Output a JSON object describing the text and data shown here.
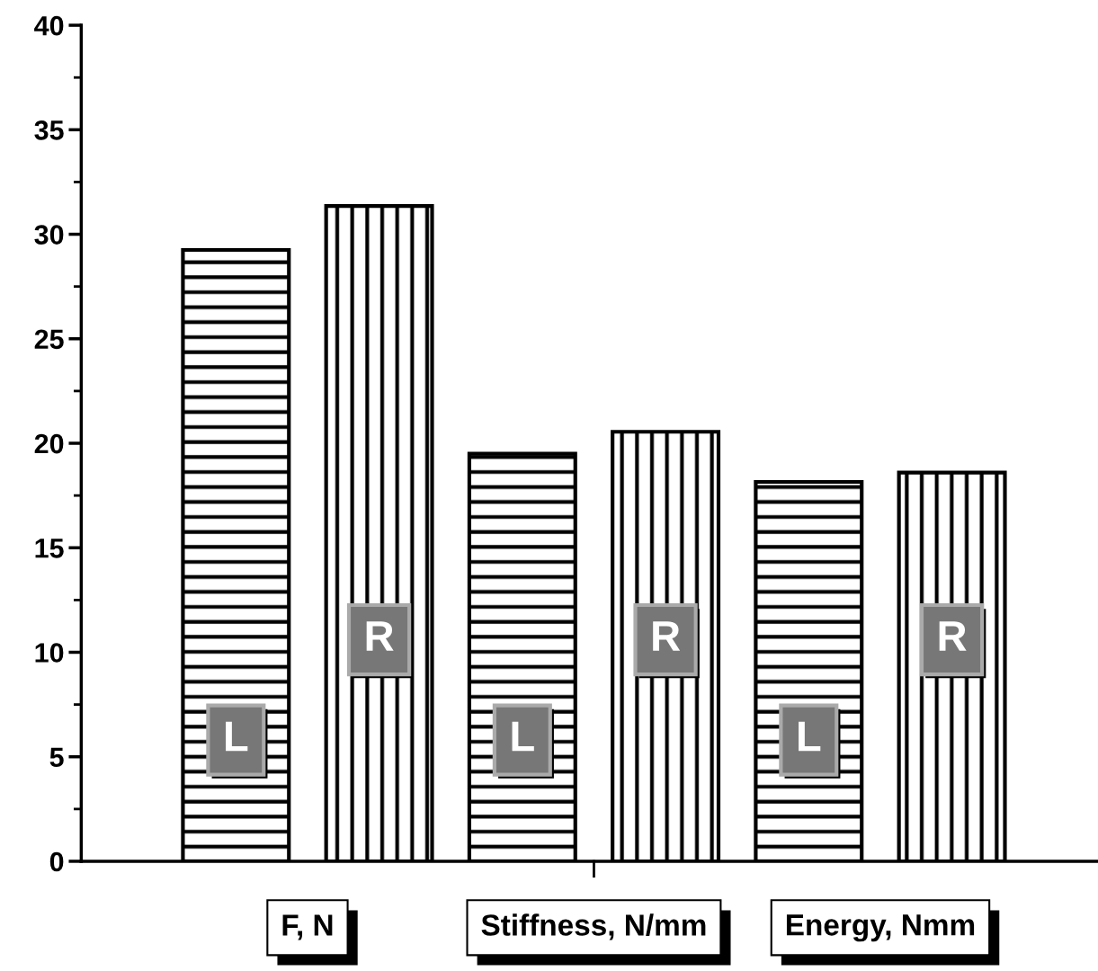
{
  "chart_data": {
    "type": "bar",
    "categories": [
      "F, N",
      "Stiffness, N/mm",
      "Energy, Nmm"
    ],
    "series": [
      {
        "name": "L",
        "color": "#000000",
        "values": [
          29.25,
          19.5,
          18.15
        ]
      },
      {
        "name": "R",
        "color": "#000000",
        "values": [
          31.35,
          20.55,
          18.6
        ]
      }
    ],
    "ylim": [
      0,
      40
    ],
    "yticks": [
      0,
      5,
      10,
      15,
      20,
      25,
      30,
      35,
      40
    ],
    "grid": false,
    "legend": false
  }
}
